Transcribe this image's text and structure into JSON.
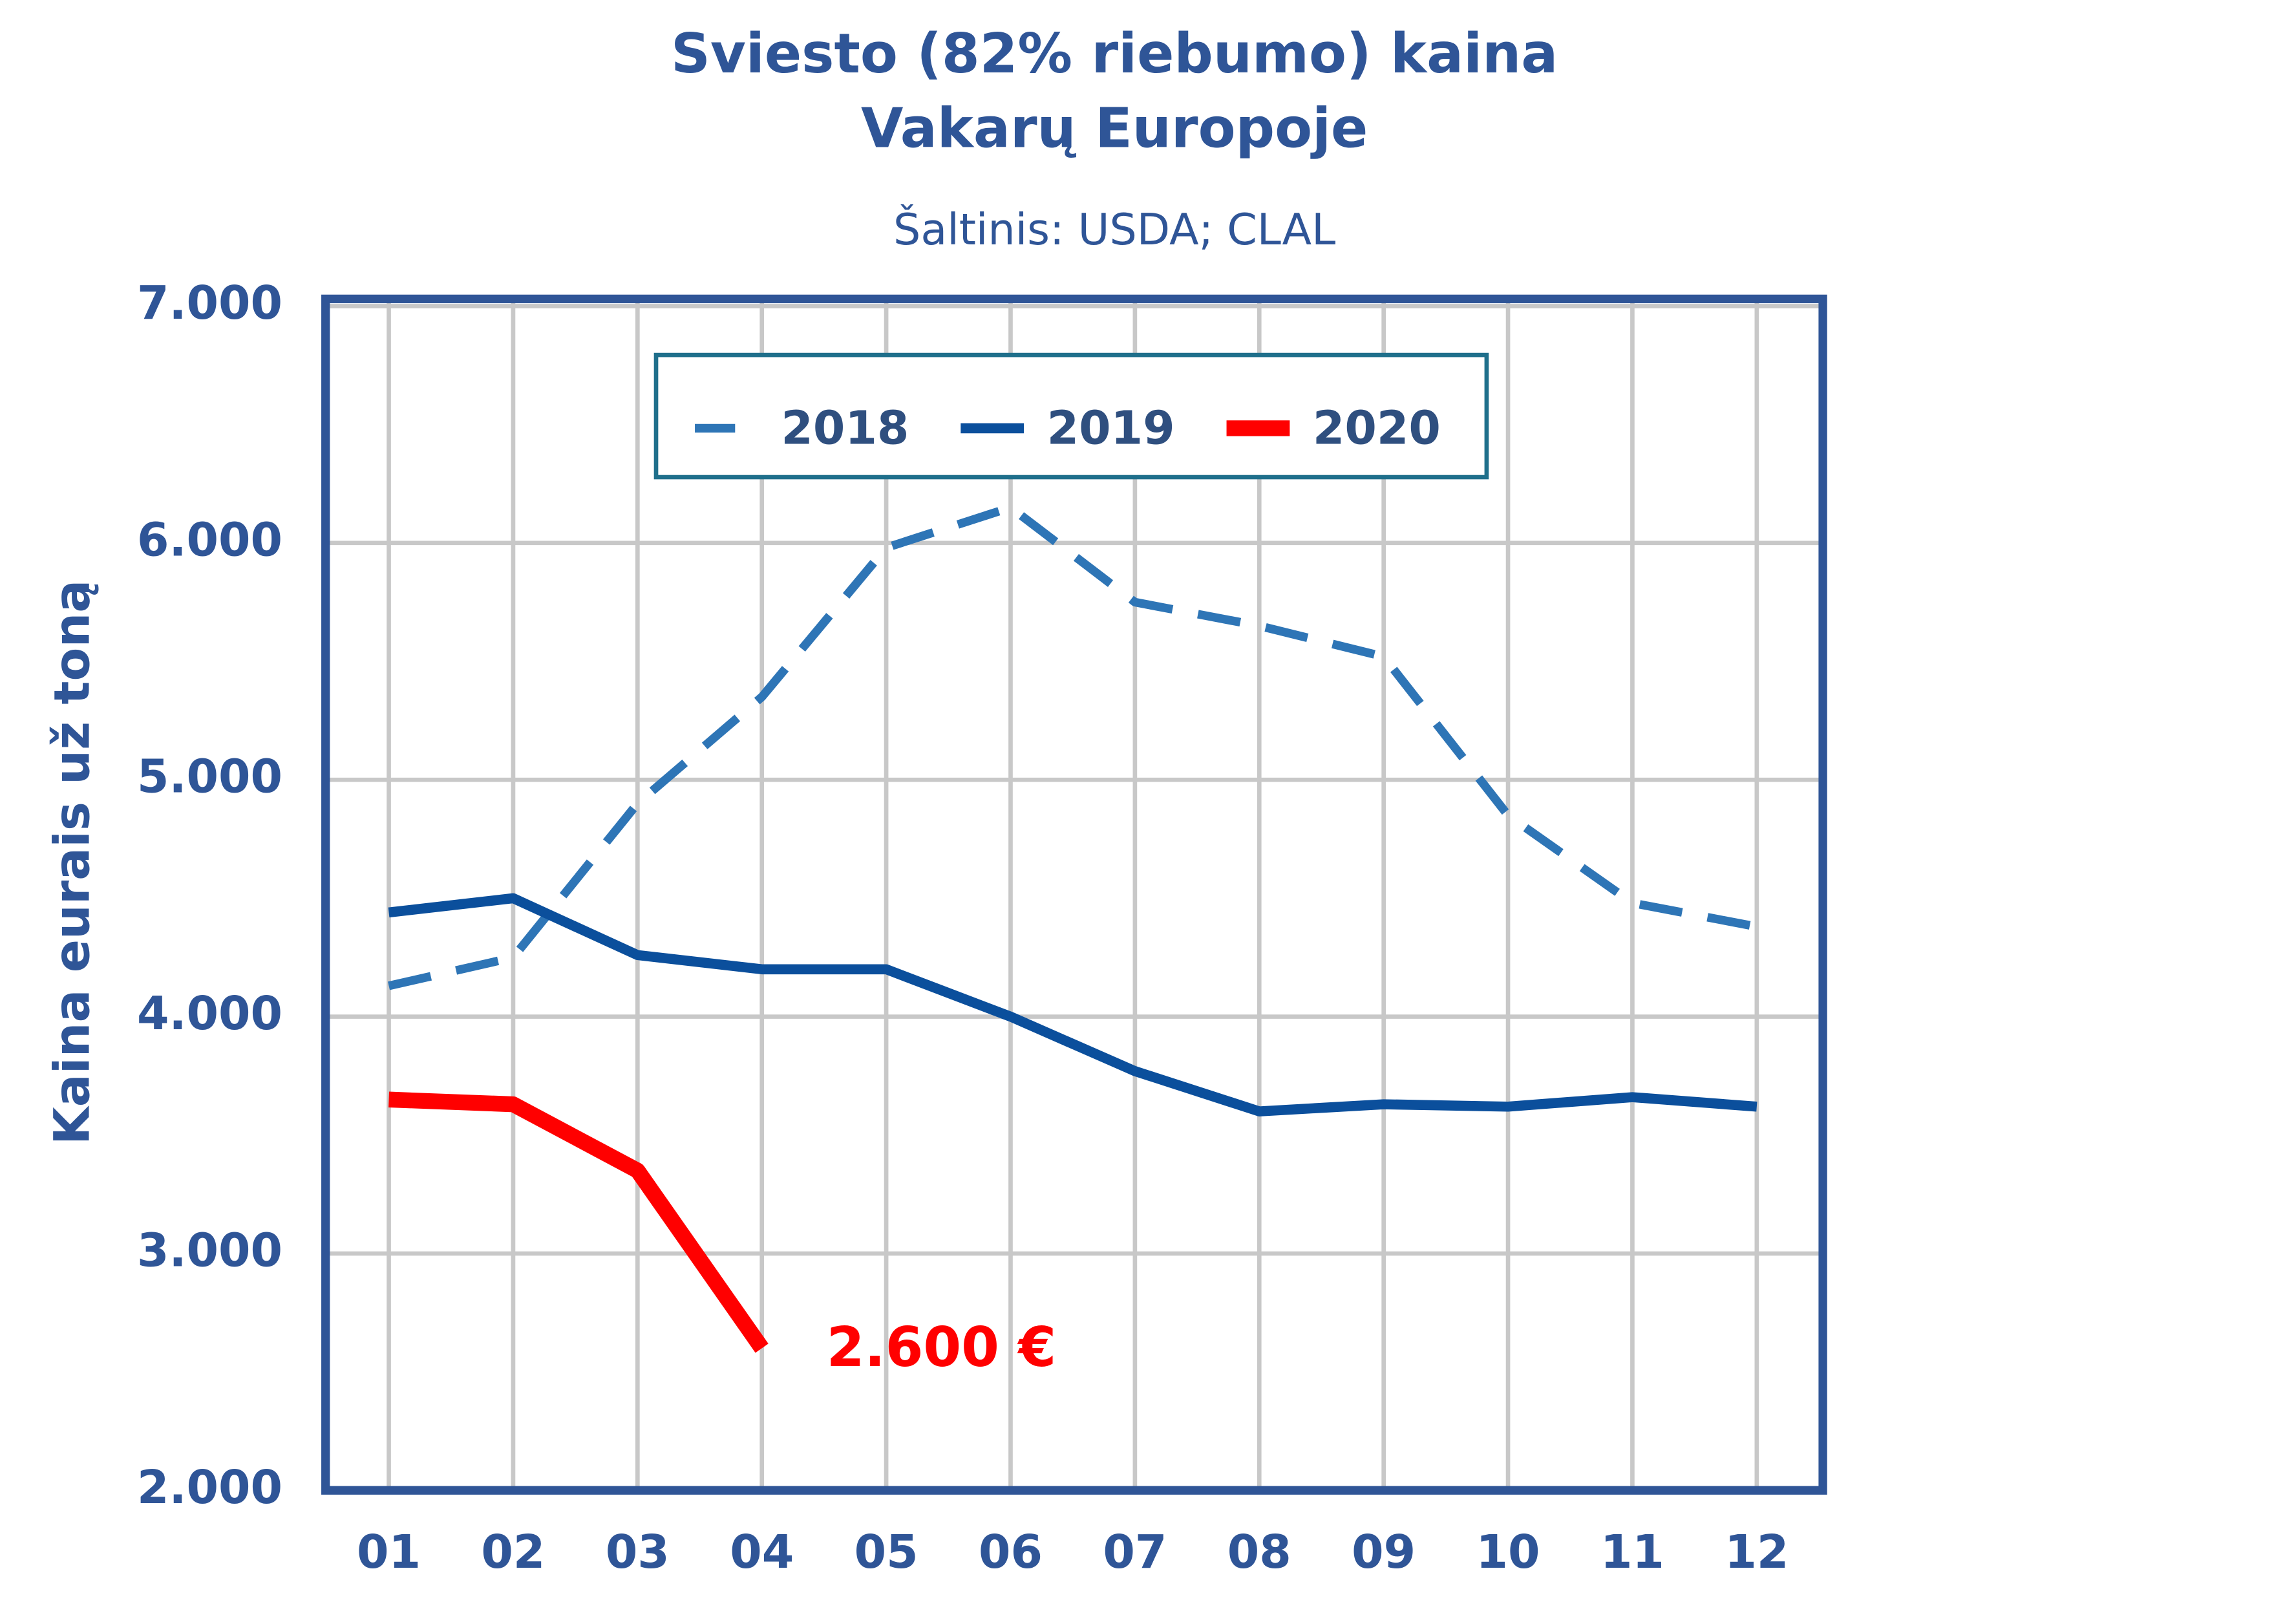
{
  "chart_data": {
    "type": "line",
    "title": "Sviesto (82% riebumo) kaina",
    "subtitle": "Vakarų Europoje",
    "source": "Šaltinis: USDA; CLAL",
    "y_label": "Kaina eurais už toną",
    "annotation": "2.600 €",
    "categories": [
      "01",
      "02",
      "03",
      "04",
      "05",
      "06",
      "07",
      "08",
      "09",
      "10",
      "11",
      "12"
    ],
    "series": [
      {
        "name": "2018",
        "color": "#2e75b6",
        "dashed": true,
        "values": [
          4130,
          4250,
          4900,
          5350,
          5980,
          6150,
          5750,
          5650,
          5520,
          4850,
          4480,
          4380
        ]
      },
      {
        "name": "2019",
        "color": "#0b4f9c",
        "dashed": false,
        "values": [
          4440,
          4500,
          4260,
          4200,
          4200,
          4000,
          3770,
          3600,
          3630,
          3620,
          3660,
          3620
        ]
      },
      {
        "name": "2020",
        "color": "#ff0000",
        "dashed": false,
        "values": [
          3650,
          3630,
          3350,
          2600,
          null,
          null,
          null,
          null,
          null,
          null,
          null,
          null
        ]
      }
    ],
    "ylim": [
      2000,
      7000
    ],
    "yticks": [
      {
        "value": 2000,
        "label": "2.000"
      },
      {
        "value": 3000,
        "label": "3.000"
      },
      {
        "value": 4000,
        "label": "4.000"
      },
      {
        "value": 5000,
        "label": "5.000"
      },
      {
        "value": 6000,
        "label": "6.000"
      },
      {
        "value": 7000,
        "label": "7.000"
      }
    ],
    "grid": true,
    "legend": "top"
  }
}
